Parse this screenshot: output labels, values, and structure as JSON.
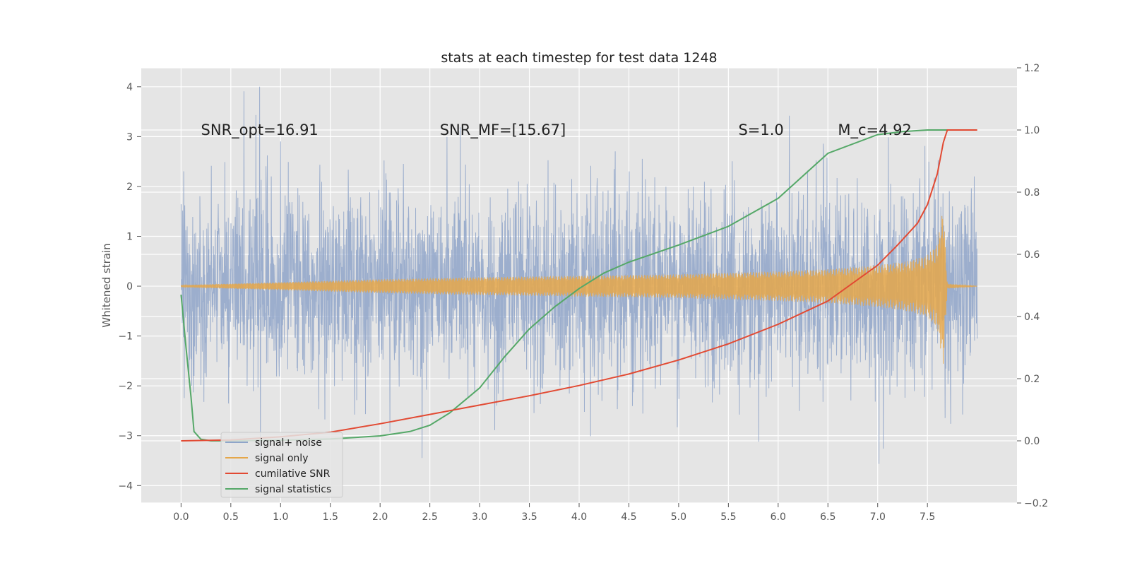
{
  "chart_data": {
    "type": "line",
    "title": "stats at each timestep for test data 1248",
    "ylabel": "Whitened strain",
    "xlim": [
      -0.4,
      8.4
    ],
    "ylim": [
      -4.35,
      4.38
    ],
    "y2lim": [
      -0.2,
      1.2
    ],
    "x_ticks": [
      0.0,
      0.5,
      1.0,
      1.5,
      2.0,
      2.5,
      3.0,
      3.5,
      4.0,
      4.5,
      5.0,
      5.5,
      6.0,
      6.5,
      7.0,
      7.5
    ],
    "x_tick_labels": [
      "0.0",
      "0.5",
      "1.0",
      "1.5",
      "2.0",
      "2.5",
      "3.0",
      "3.5",
      "4.0",
      "4.5",
      "5.0",
      "5.5",
      "6.0",
      "6.5",
      "7.0",
      "7.5"
    ],
    "y_ticks": [
      -4,
      -3,
      -2,
      -1,
      0,
      1,
      2,
      3,
      4
    ],
    "y_tick_labels": [
      "−4",
      "−3",
      "−2",
      "−1",
      "0",
      "1",
      "2",
      "3",
      "4"
    ],
    "y2_ticks": [
      -0.2,
      0.0,
      0.2,
      0.4,
      0.6,
      0.8,
      1.0,
      1.2
    ],
    "y2_tick_labels": [
      "−0.2",
      "0.0",
      "0.2",
      "0.4",
      "0.6",
      "0.8",
      "1.0",
      "1.2"
    ],
    "grid": true,
    "legend_position": "lower-left",
    "annotations": [
      {
        "text": "SNR_opt=16.91",
        "x": 0.2,
        "y": 3.15
      },
      {
        "text": "SNR_MF=[15.67]",
        "x": 2.6,
        "y": 3.15
      },
      {
        "text": "S=1.0",
        "x": 5.6,
        "y": 3.15
      },
      {
        "text": "M_c=4.92",
        "x": 6.6,
        "y": 3.15
      }
    ],
    "series": [
      {
        "name": "signal+ noise",
        "axis": "left",
        "color": "#8fa5c9",
        "kind": "noise",
        "x_range": [
          0.0,
          8.0
        ],
        "typical_peak": 2.3,
        "extreme_range": [
          -3.98,
          4.0
        ]
      },
      {
        "name": "signal only",
        "axis": "left",
        "color": "#e5a74a",
        "kind": "chirp",
        "x_range": [
          0.0,
          8.0
        ],
        "envelope": {
          "x": [
            0.0,
            1.0,
            2.0,
            3.0,
            4.0,
            5.0,
            6.0,
            6.5,
            7.0,
            7.3,
            7.5,
            7.6,
            7.66,
            7.7,
            8.0
          ],
          "amp": [
            0.02,
            0.08,
            0.14,
            0.18,
            0.21,
            0.24,
            0.3,
            0.34,
            0.42,
            0.5,
            0.62,
            0.85,
            1.6,
            0.05,
            0.0
          ]
        }
      },
      {
        "name": "cumilative SNR",
        "axis": "right",
        "color": "#e24a33",
        "x": [
          0.0,
          0.5,
          1.0,
          1.5,
          2.0,
          2.5,
          3.0,
          3.5,
          4.0,
          4.5,
          5.0,
          5.5,
          6.0,
          6.5,
          7.0,
          7.2,
          7.4,
          7.5,
          7.6,
          7.66,
          7.7,
          8.0
        ],
        "values": [
          0.0,
          0.003,
          0.013,
          0.028,
          0.055,
          0.085,
          0.115,
          0.145,
          0.178,
          0.215,
          0.26,
          0.312,
          0.375,
          0.45,
          0.565,
          0.63,
          0.7,
          0.76,
          0.86,
          0.96,
          1.0,
          1.0
        ]
      },
      {
        "name": "signal statistics",
        "axis": "right",
        "color": "#55a868",
        "x": [
          0.0,
          0.05,
          0.1,
          0.13,
          0.2,
          0.3,
          0.5,
          1.0,
          1.5,
          2.0,
          2.3,
          2.5,
          2.7,
          3.0,
          3.25,
          3.5,
          3.75,
          4.0,
          4.25,
          4.5,
          5.0,
          5.5,
          6.0,
          6.5,
          7.0,
          7.25,
          7.5,
          8.0
        ],
        "values": [
          0.47,
          0.3,
          0.14,
          0.03,
          0.005,
          0.0,
          0.0,
          0.002,
          0.006,
          0.016,
          0.03,
          0.05,
          0.09,
          0.17,
          0.27,
          0.36,
          0.43,
          0.49,
          0.54,
          0.575,
          0.63,
          0.69,
          0.78,
          0.925,
          0.985,
          0.995,
          1.0,
          1.0
        ]
      }
    ]
  }
}
